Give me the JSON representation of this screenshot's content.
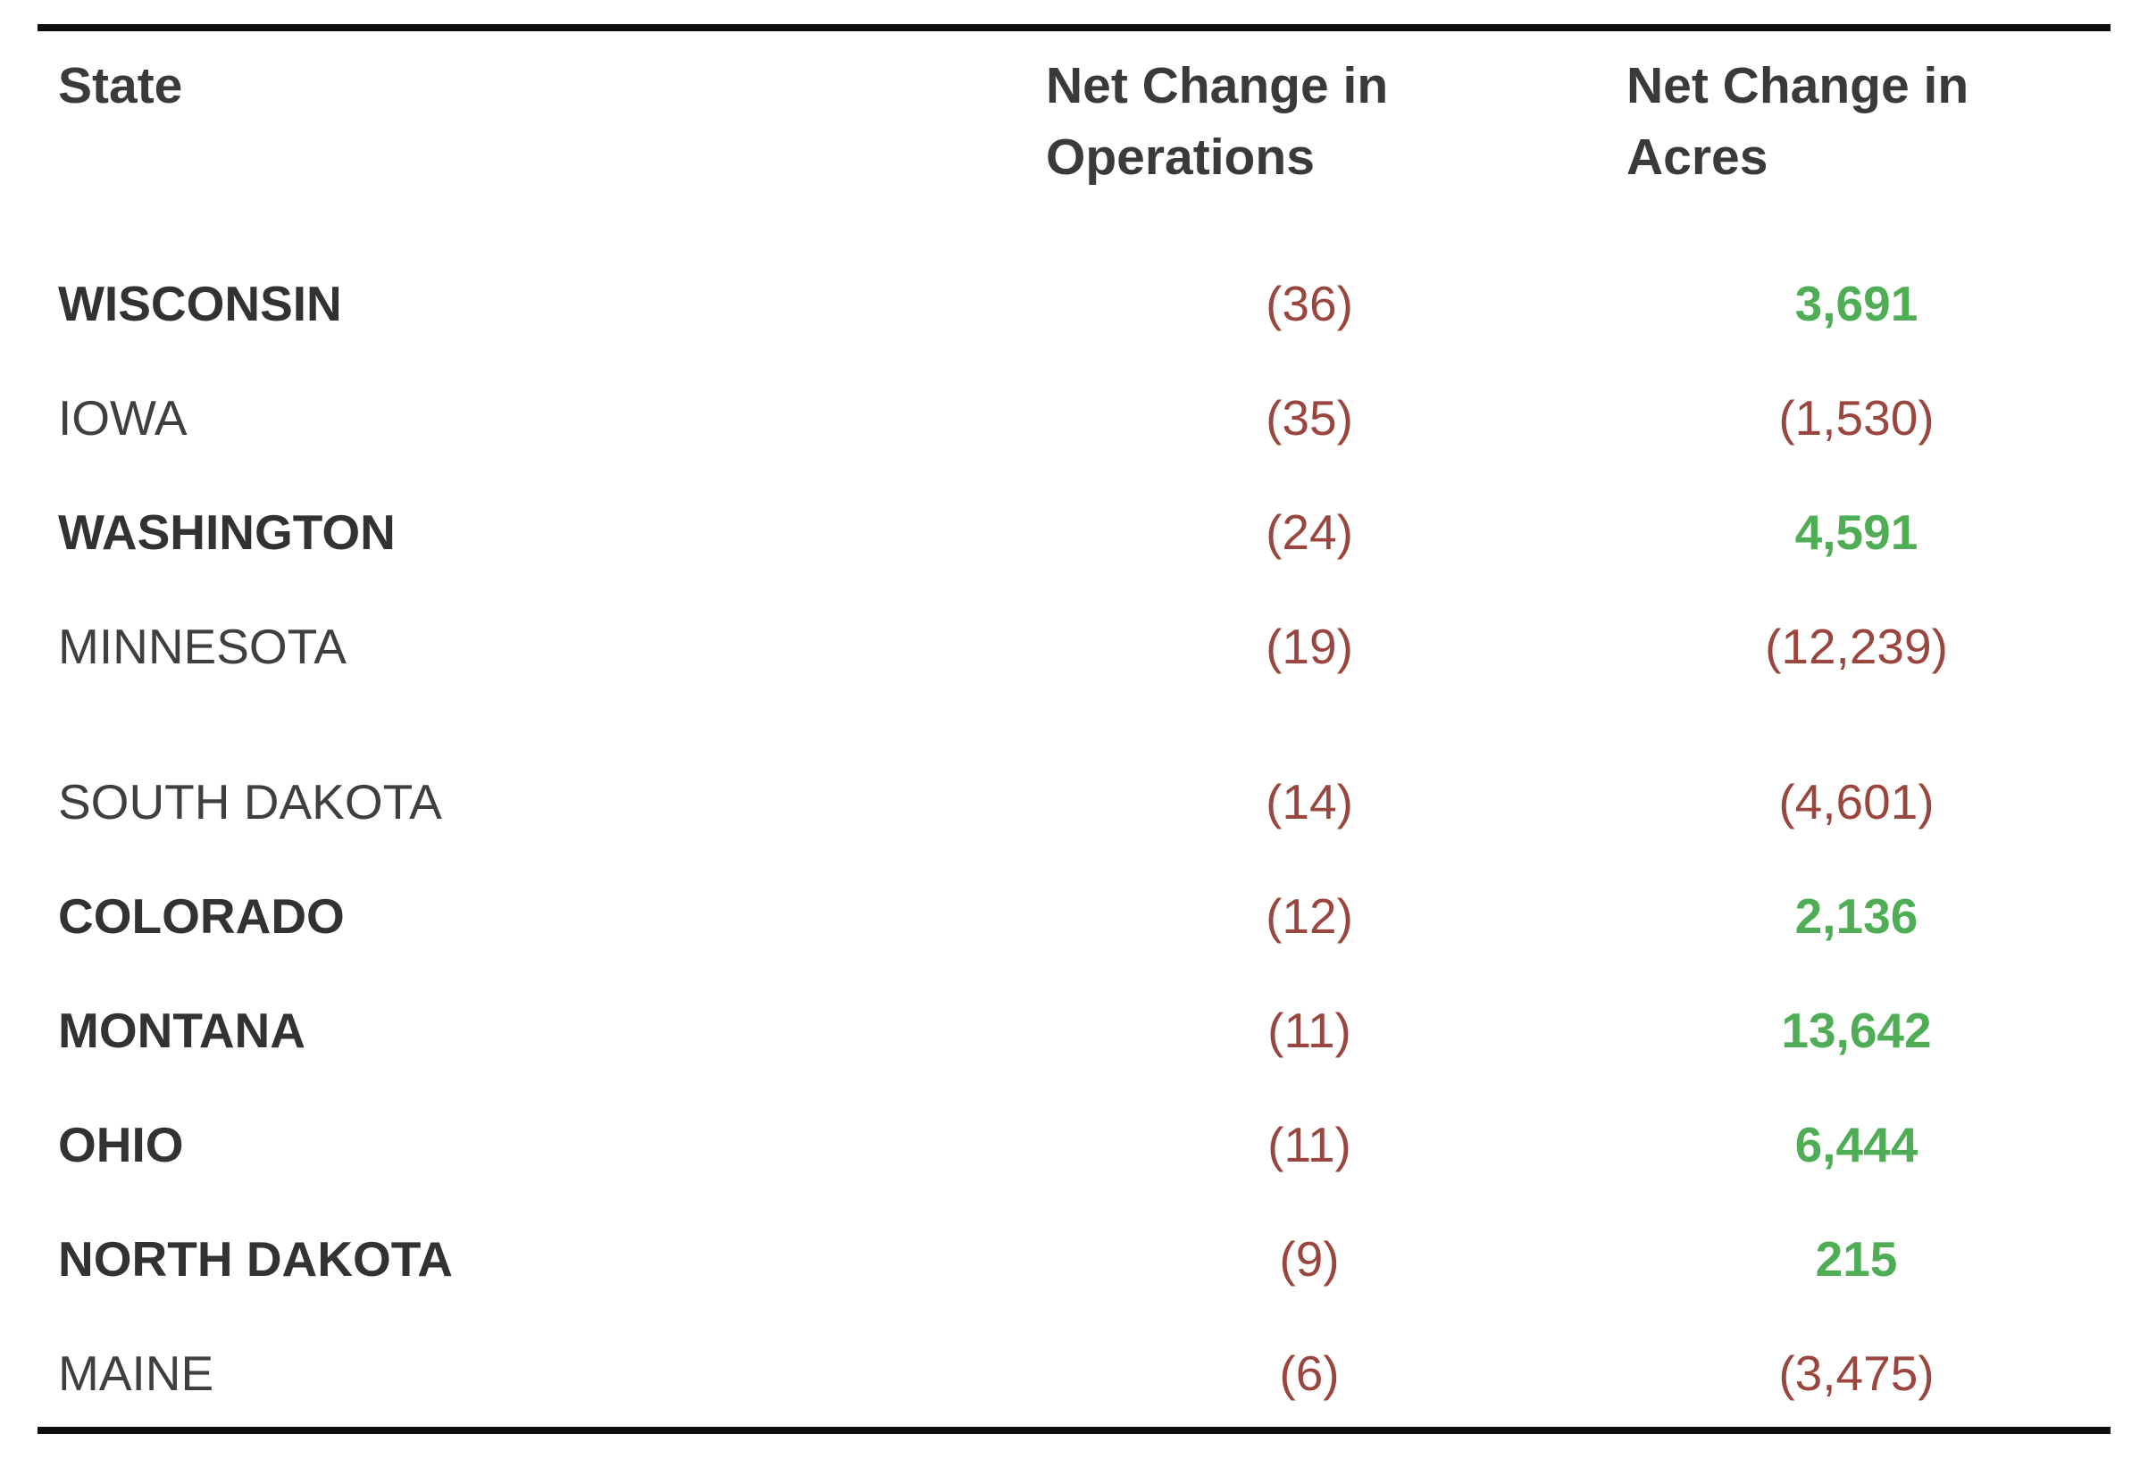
{
  "colors": {
    "text_regular": "#3f3f3f",
    "text_bold": "#323232",
    "negative_red": "#9a463e",
    "positive_green": "#4fae55",
    "border_black": "#0e0e0e",
    "background": "#ffffff"
  },
  "table": {
    "columns": [
      {
        "label": "State"
      },
      {
        "label": "Net Change in Operations"
      },
      {
        "label": "Net Change in Acres"
      }
    ],
    "rows": [
      {
        "state": "WISCONSIN",
        "state_bold": true,
        "operations": "(36)",
        "acres": "3,691",
        "acres_positive": true,
        "gap_before": false
      },
      {
        "state": "IOWA",
        "state_bold": false,
        "operations": "(35)",
        "acres": "(1,530)",
        "acres_positive": false,
        "gap_before": false
      },
      {
        "state": "WASHINGTON",
        "state_bold": true,
        "operations": "(24)",
        "acres": "4,591",
        "acres_positive": true,
        "gap_before": false
      },
      {
        "state": "MINNESOTA",
        "state_bold": false,
        "operations": "(19)",
        "acres": "(12,239)",
        "acres_positive": false,
        "gap_before": false
      },
      {
        "state": "SOUTH DAKOTA",
        "state_bold": false,
        "operations": "(14)",
        "acres": "(4,601)",
        "acres_positive": false,
        "gap_before": true
      },
      {
        "state": "COLORADO",
        "state_bold": true,
        "operations": "(12)",
        "acres": "2,136",
        "acres_positive": true,
        "gap_before": false
      },
      {
        "state": "MONTANA",
        "state_bold": true,
        "operations": "(11)",
        "acres": "13,642",
        "acres_positive": true,
        "gap_before": false
      },
      {
        "state": "OHIO",
        "state_bold": true,
        "operations": "(11)",
        "acres": "6,444",
        "acres_positive": true,
        "gap_before": false
      },
      {
        "state": "NORTH DAKOTA",
        "state_bold": true,
        "operations": "(9)",
        "acres": "215",
        "acres_positive": true,
        "gap_before": false
      },
      {
        "state": "MAINE",
        "state_bold": false,
        "operations": "(6)",
        "acres": "(3,475)",
        "acres_positive": false,
        "gap_before": false
      }
    ]
  },
  "chart_data": {
    "type": "table",
    "columns": [
      "State",
      "Net Change in Operations",
      "Net Change in Acres"
    ],
    "rows": [
      [
        "WISCONSIN",
        -36,
        3691
      ],
      [
        "IOWA",
        -35,
        -1530
      ],
      [
        "WASHINGTON",
        -24,
        4591
      ],
      [
        "MINNESOTA",
        -19,
        -12239
      ],
      [
        "SOUTH DAKOTA",
        -14,
        -4601
      ],
      [
        "COLORADO",
        -12,
        2136
      ],
      [
        "MONTANA",
        -11,
        13642
      ],
      [
        "OHIO",
        -11,
        6444
      ],
      [
        "NORTH DAKOTA",
        -9,
        215
      ],
      [
        "MAINE",
        -6,
        -3475
      ]
    ],
    "value_format": "negative values rendered in parentheses"
  }
}
